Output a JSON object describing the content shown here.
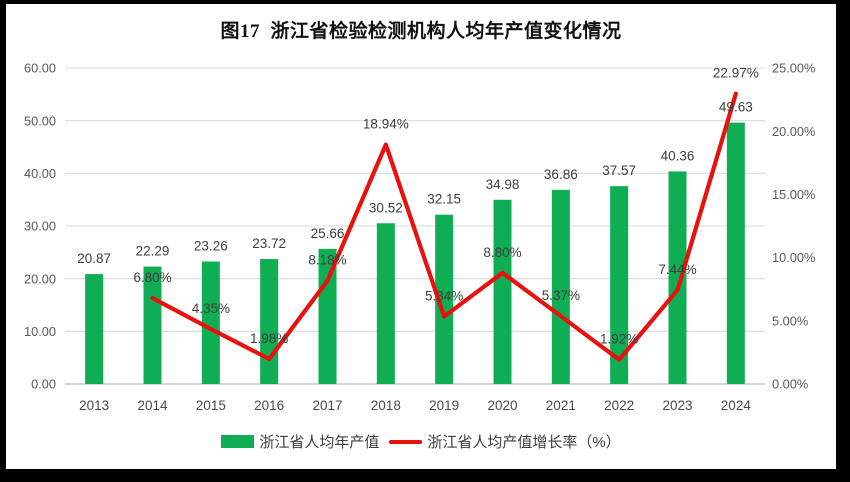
{
  "title": "图17  浙江省检验检测机构人均年产值变化情况",
  "legend": {
    "bar_label": "浙江省人均年产值",
    "line_label": "浙江省人均产值增长率（%）"
  },
  "colors": {
    "bar": "#0fae54",
    "line": "#e9110e",
    "grid": "#d9d9d9",
    "axis_line": "#c9c9c9",
    "axis_text": "#595959",
    "data_label": "#3d3d3d"
  },
  "chart_data": {
    "type": "bar",
    "subtype": "combo-bar-line",
    "title": "图17  浙江省检验检测机构人均年产值变化情况",
    "categories": [
      "2013",
      "2014",
      "2015",
      "2016",
      "2017",
      "2018",
      "2019",
      "2020",
      "2021",
      "2022",
      "2023",
      "2024"
    ],
    "series": [
      {
        "name": "浙江省人均年产值",
        "type": "bar",
        "axis": "left",
        "color": "#0fae54",
        "values": [
          20.87,
          22.29,
          23.26,
          23.72,
          25.66,
          30.52,
          32.15,
          34.98,
          36.86,
          37.57,
          40.36,
          49.63
        ],
        "data_labels": [
          "20.87",
          "22.29",
          "23.26",
          "23.72",
          "25.66",
          "30.52",
          "32.15",
          "34.98",
          "36.86",
          "37.57",
          "40.36",
          "49.63"
        ]
      },
      {
        "name": "浙江省人均产值增长率（%）",
        "type": "line",
        "axis": "right",
        "color": "#e9110e",
        "values": [
          null,
          6.8,
          4.35,
          1.98,
          8.18,
          18.94,
          5.34,
          8.8,
          5.37,
          1.92,
          7.44,
          22.97
        ],
        "data_labels": [
          null,
          "6.80%",
          "4.35%",
          "1.98%",
          "8.18%",
          "18.94%",
          "5.34%",
          "8.80%",
          "5.37%",
          "1.92%",
          "7.44%",
          "22.97%"
        ]
      }
    ],
    "left_axis": {
      "min": 0,
      "max": 60,
      "step": 10,
      "tick_labels": [
        "0.00",
        "10.00",
        "20.00",
        "30.00",
        "40.00",
        "50.00",
        "60.00"
      ]
    },
    "right_axis": {
      "min": 0,
      "max": 25,
      "step": 5,
      "tick_labels": [
        "0.00%",
        "5.00%",
        "10.00%",
        "15.00%",
        "20.00%",
        "25.00%"
      ]
    },
    "grid": true,
    "legend_position": "bottom",
    "xlabel": "",
    "ylabel": ""
  }
}
